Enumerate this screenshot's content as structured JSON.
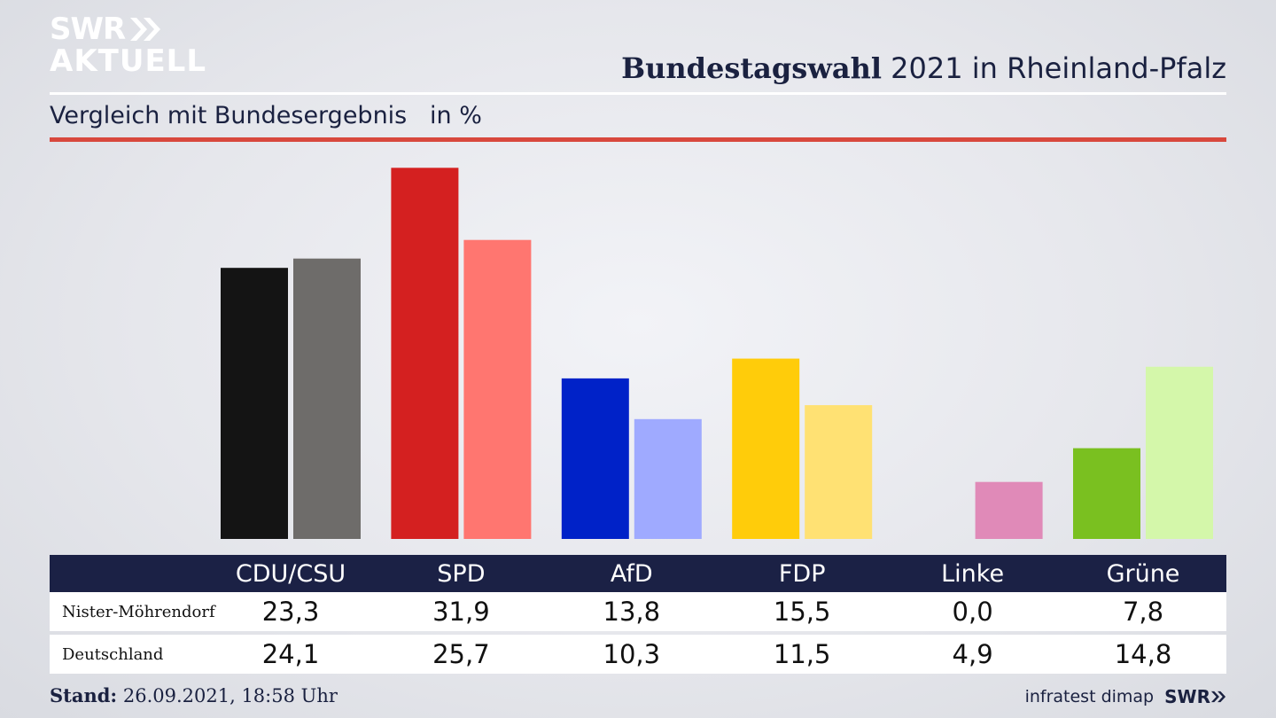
{
  "logo": {
    "line1": "SWR",
    "line2": "AKTUELL"
  },
  "title": {
    "bold": "Bundestagswahl",
    "rest": " 2021 in Rheinland-Pfalz"
  },
  "subtitle": "Vergleich mit Bundesergebnis   in %",
  "chart_data": {
    "type": "bar",
    "title": "Bundestagswahl 2021 in Rheinland-Pfalz",
    "subtitle": "Vergleich mit Bundesergebnis in %",
    "categories": [
      "CDU/CSU",
      "SPD",
      "AfD",
      "FDP",
      "Linke",
      "Grüne"
    ],
    "series": [
      {
        "name": "Nister-Möhrendorf",
        "values": [
          23.3,
          31.9,
          13.8,
          15.5,
          0.0,
          7.8
        ],
        "colors": [
          "#141414",
          "#d42020",
          "#0022c8",
          "#ffcc0a",
          "#e08ab8",
          "#7ac020"
        ]
      },
      {
        "name": "Deutschland",
        "values": [
          24.1,
          25.7,
          10.3,
          11.5,
          4.9,
          14.8
        ],
        "colors": [
          "#6e6c6a",
          "#ff7670",
          "#9faaff",
          "#ffe173",
          "#e08ab8",
          "#d4f7aa"
        ]
      }
    ],
    "ylim": [
      0,
      32
    ],
    "grid": false
  },
  "table": {
    "rows": [
      {
        "label": "Nister-Möhrendorf",
        "values": [
          "23,3",
          "31,9",
          "13,8",
          "15,5",
          "0,0",
          "7,8"
        ]
      },
      {
        "label": "Deutschland",
        "values": [
          "24,1",
          "25,7",
          "10,3",
          "11,5",
          "4,9",
          "14,8"
        ]
      }
    ]
  },
  "footer": {
    "stand_label": "Stand:",
    "stand_value": " 26.09.2021, 18:58 Uhr",
    "source": "infratest dimap",
    "brand": "SWR"
  }
}
